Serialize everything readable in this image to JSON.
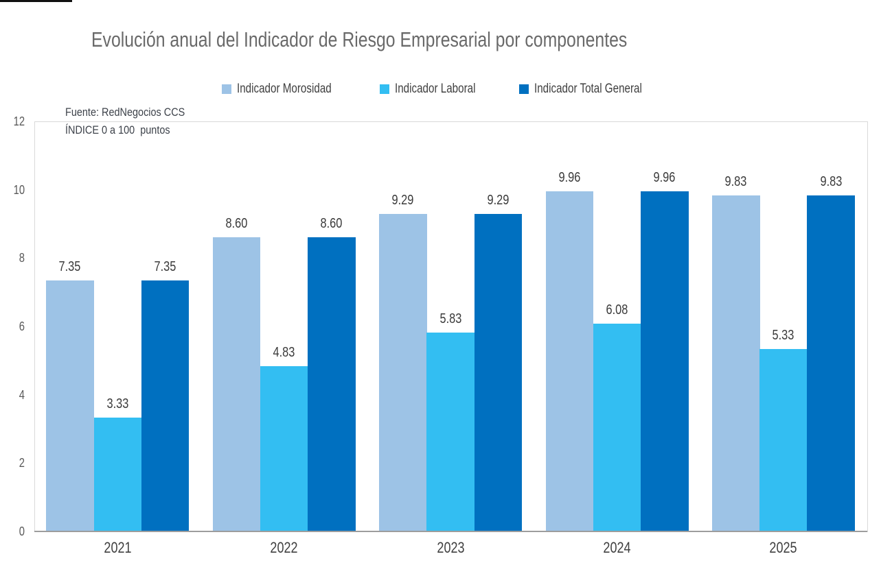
{
  "page": {
    "background": "#ffffff"
  },
  "header": {
    "title": "Evolución anual del Indicador de Riesgo Empresarial por componentes"
  },
  "annotations": {
    "source_line1": "Fuente: RedNegocios CCS",
    "source_line2": "ÍNDICE 0 a 100  puntos"
  },
  "chart_data": {
    "type": "bar",
    "title": "Evolución anual del Indicador de Riesgo Empresarial por componentes",
    "categories": [
      "2021",
      "2022",
      "2023",
      "2024",
      "2025"
    ],
    "series": [
      {
        "name": "Indicador Morosidad",
        "color": "#9DC3E6",
        "values": [
          7.35,
          8.6,
          9.29,
          9.96,
          9.83
        ]
      },
      {
        "name": "Indicador Laboral",
        "color": "#33BEF2",
        "values": [
          3.33,
          4.83,
          5.83,
          6.08,
          5.33
        ]
      },
      {
        "name": "Indicador Total General",
        "color": "#0070C0",
        "values": [
          7.35,
          8.6,
          9.29,
          9.96,
          9.83
        ]
      }
    ],
    "xlabel": "",
    "ylabel": "",
    "ylim": [
      0,
      12
    ],
    "yticks": [
      0,
      2,
      4,
      6,
      8,
      10,
      12
    ],
    "grid": false,
    "legend_position": "top",
    "value_labels": true,
    "value_label_format": "2dp",
    "colors": {
      "title_text": "#696969",
      "tick_text": "#595959",
      "label_text": "#3a3a3a",
      "source_text": "#3d424a",
      "plot_border": "#d9d9d9",
      "axis_line": "#9d9d9d"
    }
  }
}
